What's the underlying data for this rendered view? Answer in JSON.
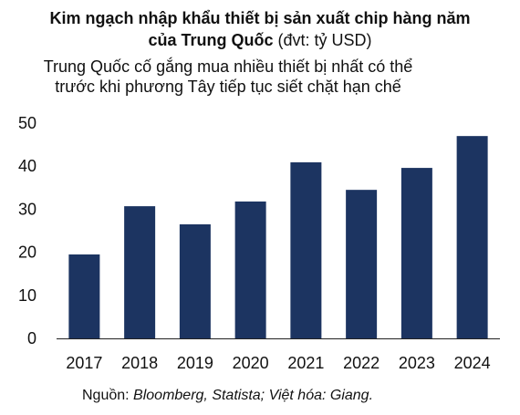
{
  "title": {
    "line1": "Kim ngạch nhập khẩu thiết bị sản xuất chip hàng năm",
    "line2_bold": "của Trung Quốc",
    "line2_normal": " (đvt: tỷ USD)"
  },
  "subtitle": {
    "line1": "Trung Quốc cố gắng mua nhiều thiết bị nhất có thể",
    "line2": "trước khi phương Tây tiếp tục siết chặt hạn chế"
  },
  "source": {
    "prefix": "Nguồn: ",
    "text": "Bloomberg, Statista; Việt hóa: Giang."
  },
  "colors": {
    "bar": "#1c3461",
    "axis": "#222222",
    "text": "#111111"
  },
  "chart_data": {
    "type": "bar",
    "categories": [
      "2017",
      "2018",
      "2019",
      "2020",
      "2021",
      "2022",
      "2023",
      "2024"
    ],
    "values": [
      19.5,
      30.7,
      26.5,
      31.8,
      40.9,
      34.5,
      39.6,
      47.0
    ],
    "ylim": [
      0,
      50
    ],
    "yticks": [
      "0",
      "10",
      "20",
      "30",
      "40",
      "50"
    ],
    "grid": false,
    "legend": "none"
  }
}
